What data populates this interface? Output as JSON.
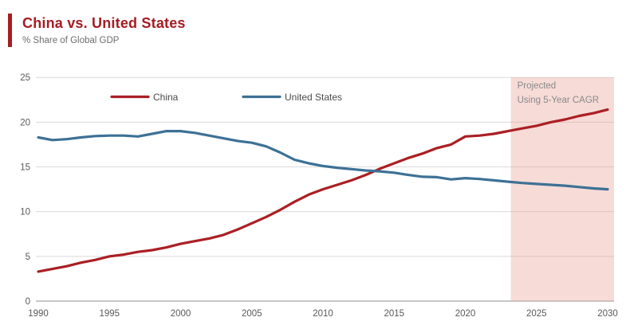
{
  "header": {
    "title": "China vs. United States",
    "subtitle": "% Share of Global GDP"
  },
  "chart_data": {
    "type": "line",
    "title": "China vs. United States",
    "subtitle": "% Share of Global GDP",
    "years": [
      1990,
      1991,
      1992,
      1993,
      1994,
      1995,
      1996,
      1997,
      1998,
      1999,
      2000,
      2001,
      2002,
      2003,
      2004,
      2005,
      2006,
      2007,
      2008,
      2009,
      2010,
      2011,
      2012,
      2013,
      2014,
      2015,
      2016,
      2017,
      2018,
      2019,
      2020,
      2021,
      2022,
      2023,
      2024,
      2025,
      2026,
      2027,
      2028,
      2029,
      2030
    ],
    "series": [
      {
        "name": "China",
        "color": "#ab1f24",
        "values": [
          3.3,
          3.6,
          3.9,
          4.3,
          4.6,
          5.0,
          5.2,
          5.5,
          5.7,
          6.0,
          6.4,
          6.7,
          7.0,
          7.4,
          8.0,
          8.7,
          9.4,
          10.2,
          11.1,
          11.9,
          12.5,
          13.0,
          13.5,
          14.1,
          14.8,
          15.4,
          16.0,
          16.5,
          17.1,
          17.5,
          18.4,
          18.5,
          18.7,
          19.0,
          19.3,
          19.6,
          20.0,
          20.3,
          20.7,
          21.0,
          21.4
        ]
      },
      {
        "name": "United States",
        "color": "#3d7195",
        "values": [
          18.3,
          18.0,
          18.1,
          18.3,
          18.45,
          18.5,
          18.5,
          18.4,
          18.7,
          19.0,
          19.0,
          18.8,
          18.5,
          18.2,
          17.9,
          17.7,
          17.3,
          16.6,
          15.8,
          15.4,
          15.1,
          14.9,
          14.75,
          14.6,
          14.5,
          14.35,
          14.1,
          13.9,
          13.85,
          13.6,
          13.75,
          13.65,
          13.5,
          13.35,
          13.2,
          13.1,
          13.0,
          12.9,
          12.75,
          12.6,
          12.5
        ]
      }
    ],
    "xticks": [
      1990,
      1995,
      2000,
      2005,
      2010,
      2015,
      2020,
      2025,
      2030
    ],
    "yticks": [
      0,
      5,
      10,
      15,
      20,
      25
    ],
    "ylim": [
      0,
      25
    ],
    "xlim": [
      1989.83,
      2030.45
    ],
    "grid": true,
    "legend_position": "top-inside",
    "projection": {
      "start_year": 2023.2,
      "label_line1": "Projected",
      "label_line2": "Using 5-Year CAGR",
      "fill": "#e8a095",
      "opacity": 0.38
    },
    "colors": {
      "accent": "#a51c22",
      "grid": "#d9d9d9",
      "axis": "#a8a8a8",
      "tick_label": "#595959",
      "legend_label": "#4a4a4a",
      "annotation_text": "#8a8a8a"
    }
  }
}
